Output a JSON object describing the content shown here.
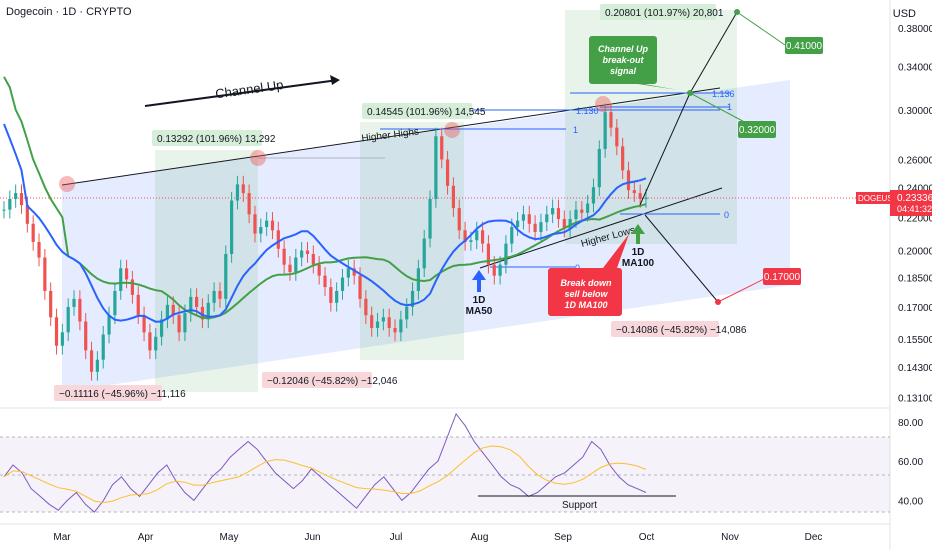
{
  "header": {
    "symbol_line": "Dogecoin · 1D · CRYPTO",
    "currency": "USD"
  },
  "price_axis": {
    "ticks": [
      "0.38000",
      "0.34000",
      "0.30000",
      "0.26000",
      "0.24000",
      "0.22000",
      "0.20000",
      "0.18500",
      "0.17000",
      "0.15500",
      "0.14300",
      "0.13100"
    ],
    "current_symbol": "DOGEUSD",
    "current_price": "0.23336",
    "countdown": "04:41:32"
  },
  "rsi_axis": {
    "ticks": [
      "80.00",
      "60.00",
      "40.00"
    ]
  },
  "time_axis": {
    "ticks": [
      "Mar",
      "Apr",
      "May",
      "Jun",
      "Jul",
      "Aug",
      "Sep",
      "Oct",
      "Nov",
      "Dec"
    ]
  },
  "annotations": {
    "channel_up": "Channel Up",
    "higher_highs": "Higher Highs",
    "higher_lows": "Higher Lows",
    "ma50": [
      "1D",
      "MA50"
    ],
    "ma100": [
      "1D",
      "MA100"
    ],
    "support": "Support",
    "breakout": [
      "Channel Up",
      "break-out",
      "signal"
    ],
    "breakdown": [
      "Break down",
      "sell below",
      "1D MA100"
    ]
  },
  "measures": {
    "m1": "0.13292 (101.96%) 13,292",
    "m2": "0.14545 (101.96%) 14,545",
    "m3": "0.20801 (101.97%) 20,801",
    "d1": "−0.11116 (−45.96%) −11,116",
    "d2": "−0.12046 (−45.82%) −12,046",
    "d3": "−0.14086 (−45.82%) −14,086"
  },
  "fib": {
    "a_top": "1",
    "a_val": "1.130",
    "b_top": "1.136",
    "b_mid": "1",
    "zero1": "0",
    "zero2": "0"
  },
  "targets": {
    "t1": "0.41000",
    "t2": "0.32000",
    "t3": "0.17000"
  },
  "colors": {
    "up": "#26a69a",
    "down": "#ef5350",
    "ma50": "#2962ff",
    "ma100": "#43a047",
    "channel": "rgba(41,98,255,0.12)",
    "target_green": "#43a047",
    "target_red": "#f23645",
    "rsi": "#7e57c2",
    "rsi_ma": "#fbc02d"
  },
  "chart_data": {
    "type": "candlestick",
    "title": "Dogecoin · 1D · CRYPTO",
    "price_range": [
      0.13,
      0.4
    ],
    "rsi_range": [
      30,
      85
    ],
    "x_months": [
      "Mar",
      "Apr",
      "May",
      "Jun",
      "Jul",
      "Aug",
      "Sep",
      "Oct",
      "Nov",
      "Dec"
    ],
    "closes": [
      0.225,
      0.232,
      0.236,
      0.228,
      0.216,
      0.205,
      0.196,
      0.178,
      0.165,
      0.152,
      0.158,
      0.17,
      0.174,
      0.163,
      0.15,
      0.141,
      0.146,
      0.157,
      0.166,
      0.178,
      0.19,
      0.184,
      0.176,
      0.166,
      0.158,
      0.15,
      0.156,
      0.164,
      0.171,
      0.166,
      0.158,
      0.167,
      0.175,
      0.17,
      0.164,
      0.172,
      0.178,
      0.174,
      0.198,
      0.231,
      0.242,
      0.236,
      0.222,
      0.21,
      0.214,
      0.218,
      0.212,
      0.201,
      0.192,
      0.188,
      0.196,
      0.2,
      0.198,
      0.192,
      0.186,
      0.18,
      0.172,
      0.178,
      0.185,
      0.19,
      0.186,
      0.174,
      0.166,
      0.16,
      0.163,
      0.165,
      0.16,
      0.158,
      0.164,
      0.17,
      0.178,
      0.19,
      0.207,
      0.232,
      0.278,
      0.26,
      0.241,
      0.226,
      0.212,
      0.205,
      0.206,
      0.212,
      0.204,
      0.192,
      0.186,
      0.192,
      0.204,
      0.214,
      0.218,
      0.222,
      0.216,
      0.211,
      0.217,
      0.222,
      0.226,
      0.219,
      0.213,
      0.219,
      0.225,
      0.223,
      0.229,
      0.24,
      0.268,
      0.298,
      0.285,
      0.27,
      0.252,
      0.238,
      0.236,
      0.232,
      0.233
    ],
    "rsi": [
      52,
      58,
      54,
      46,
      42,
      38,
      35,
      40,
      44,
      38,
      34,
      40,
      48,
      52,
      46,
      42,
      48,
      54,
      58,
      50,
      44,
      40,
      46,
      52,
      56,
      62,
      66,
      70,
      66,
      60,
      54,
      50,
      46,
      50,
      56,
      52,
      48,
      44,
      40,
      36,
      42,
      48,
      52,
      46,
      40,
      44,
      50,
      56,
      60,
      72,
      84,
      78,
      70,
      64,
      58,
      52,
      48,
      46,
      42,
      44,
      48,
      52,
      54,
      58,
      62,
      70,
      66,
      58,
      52,
      48,
      46,
      44
    ],
    "rsi_levels": [
      70,
      50,
      30
    ]
  }
}
